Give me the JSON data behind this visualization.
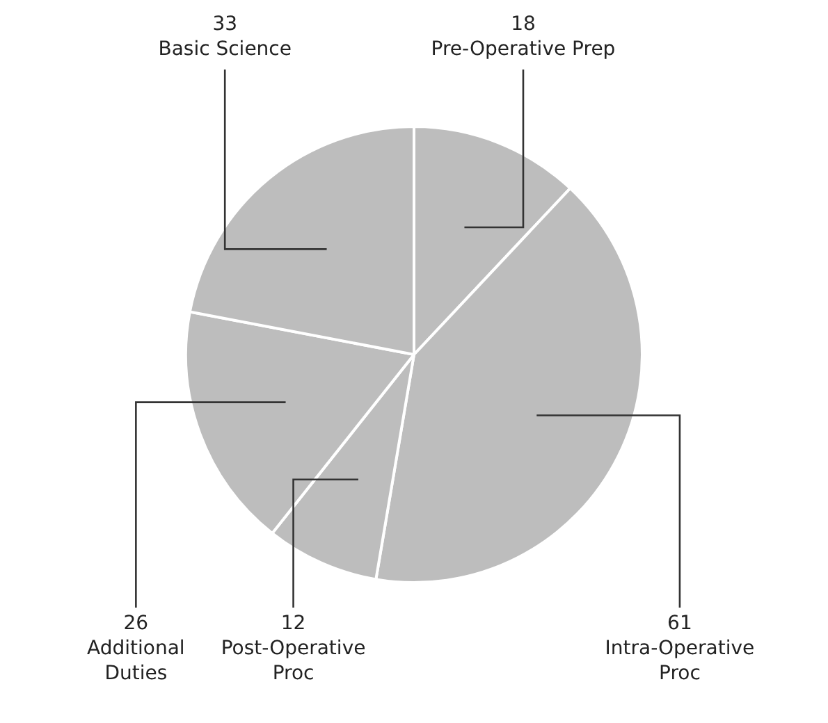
{
  "chart_data": {
    "type": "pie",
    "categories": [
      "Pre-Operative Prep",
      "Intra-Operative Proc",
      "Post-Operative Proc",
      "Additional Duties",
      "Basic Science"
    ],
    "values": [
      18,
      61,
      12,
      26,
      33
    ],
    "colors": [
      "#bdbdbd",
      "#bdbdbd",
      "#bdbdbd",
      "#bdbdbd",
      "#bdbdbd"
    ],
    "data_labels": true,
    "legend": false
  }
}
